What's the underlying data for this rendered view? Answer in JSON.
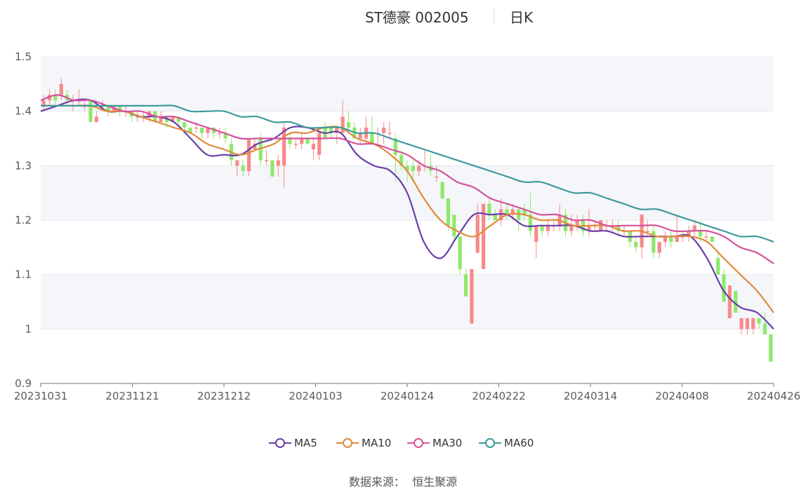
{
  "title": {
    "name": "ST德豪 002005",
    "period": "日K"
  },
  "source": {
    "label": "数据来源：",
    "value": "恒生聚源"
  },
  "legend": [
    {
      "name": "MA5",
      "color": "#6a3fa8"
    },
    {
      "name": "MA10",
      "color": "#e08a3a"
    },
    {
      "name": "MA30",
      "color": "#d4529a"
    },
    {
      "name": "MA60",
      "color": "#3f9a9c"
    }
  ],
  "colors": {
    "up": "#f78a8a",
    "down": "#8ee86a",
    "grid": "#e6e9f0",
    "band": "#f5f6fa",
    "axis": "#5a5a5a"
  },
  "chart_data": {
    "type": "candlestick",
    "title": "ST德豪 002005 日K",
    "ylim": [
      0.9,
      1.5
    ],
    "yticks": [
      "1.5",
      "1.4",
      "1.3",
      "1.2",
      "1.1",
      "1",
      "0.9"
    ],
    "xticks": [
      "20231031",
      "20231121",
      "20231212",
      "20240103",
      "20240124",
      "20240222",
      "20240314",
      "20240408",
      "20240426"
    ],
    "grid": true,
    "legend_position": "bottom",
    "candles": [
      [
        1.41,
        1.42,
        1.43,
        1.4
      ],
      [
        1.42,
        1.43,
        1.44,
        1.41
      ],
      [
        1.43,
        1.42,
        1.44,
        1.41
      ],
      [
        1.43,
        1.45,
        1.46,
        1.42
      ],
      [
        1.43,
        1.42,
        1.44,
        1.41
      ],
      [
        1.42,
        1.42,
        1.43,
        1.4
      ],
      [
        1.42,
        1.42,
        1.44,
        1.41
      ],
      [
        1.41,
        1.41,
        1.42,
        1.4
      ],
      [
        1.42,
        1.38,
        1.42,
        1.38
      ],
      [
        1.38,
        1.39,
        1.4,
        1.38
      ],
      [
        1.41,
        1.41,
        1.42,
        1.4
      ],
      [
        1.41,
        1.4,
        1.41,
        1.39
      ],
      [
        1.4,
        1.41,
        1.41,
        1.4
      ],
      [
        1.41,
        1.4,
        1.41,
        1.39
      ],
      [
        1.4,
        1.4,
        1.41,
        1.39
      ],
      [
        1.4,
        1.39,
        1.4,
        1.38
      ],
      [
        1.39,
        1.39,
        1.4,
        1.38
      ],
      [
        1.39,
        1.39,
        1.4,
        1.38
      ],
      [
        1.39,
        1.4,
        1.4,
        1.38
      ],
      [
        1.4,
        1.38,
        1.4,
        1.38
      ],
      [
        1.38,
        1.39,
        1.4,
        1.38
      ],
      [
        1.39,
        1.38,
        1.39,
        1.37
      ],
      [
        1.38,
        1.39,
        1.39,
        1.38
      ],
      [
        1.39,
        1.38,
        1.39,
        1.37
      ],
      [
        1.38,
        1.37,
        1.38,
        1.36
      ],
      [
        1.37,
        1.36,
        1.37,
        1.36
      ],
      [
        1.37,
        1.37,
        1.38,
        1.36
      ],
      [
        1.37,
        1.36,
        1.37,
        1.35
      ],
      [
        1.36,
        1.37,
        1.37,
        1.35
      ],
      [
        1.37,
        1.36,
        1.37,
        1.35
      ],
      [
        1.36,
        1.36,
        1.37,
        1.35
      ],
      [
        1.36,
        1.35,
        1.37,
        1.34
      ],
      [
        1.34,
        1.31,
        1.35,
        1.3
      ],
      [
        1.3,
        1.31,
        1.31,
        1.28
      ],
      [
        1.3,
        1.29,
        1.31,
        1.28
      ],
      [
        1.29,
        1.35,
        1.35,
        1.28
      ],
      [
        1.33,
        1.34,
        1.35,
        1.33
      ],
      [
        1.35,
        1.31,
        1.36,
        1.3
      ],
      [
        1.31,
        1.31,
        1.33,
        1.3
      ],
      [
        1.31,
        1.28,
        1.31,
        1.28
      ],
      [
        1.3,
        1.31,
        1.32,
        1.28
      ],
      [
        1.3,
        1.37,
        1.38,
        1.26
      ],
      [
        1.35,
        1.34,
        1.36,
        1.33
      ],
      [
        1.34,
        1.34,
        1.35,
        1.33
      ],
      [
        1.34,
        1.35,
        1.36,
        1.33
      ],
      [
        1.35,
        1.34,
        1.35,
        1.34
      ],
      [
        1.33,
        1.34,
        1.35,
        1.31
      ],
      [
        1.32,
        1.36,
        1.37,
        1.31
      ],
      [
        1.37,
        1.35,
        1.38,
        1.35
      ],
      [
        1.37,
        1.36,
        1.37,
        1.35
      ],
      [
        1.36,
        1.37,
        1.37,
        1.34
      ],
      [
        1.36,
        1.39,
        1.42,
        1.36
      ],
      [
        1.38,
        1.37,
        1.4,
        1.36
      ],
      [
        1.37,
        1.35,
        1.38,
        1.35
      ],
      [
        1.35,
        1.36,
        1.37,
        1.34
      ],
      [
        1.35,
        1.37,
        1.39,
        1.34
      ],
      [
        1.36,
        1.34,
        1.39,
        1.34
      ],
      [
        1.36,
        1.36,
        1.37,
        1.34
      ],
      [
        1.36,
        1.37,
        1.38,
        1.34
      ],
      [
        1.36,
        1.36,
        1.38,
        1.35
      ],
      [
        1.35,
        1.32,
        1.36,
        1.27
      ],
      [
        1.32,
        1.3,
        1.33,
        1.29
      ],
      [
        1.3,
        1.29,
        1.31,
        1.27
      ],
      [
        1.3,
        1.29,
        1.31,
        1.27
      ],
      [
        1.29,
        1.3,
        1.31,
        1.28
      ],
      [
        1.3,
        1.3,
        1.33,
        1.29
      ],
      [
        1.3,
        1.29,
        1.32,
        1.28
      ],
      [
        1.28,
        1.28,
        1.3,
        1.27
      ],
      [
        1.27,
        1.24,
        1.27,
        1.24
      ],
      [
        1.24,
        1.19,
        1.24,
        1.18
      ],
      [
        1.21,
        1.17,
        1.21,
        1.16
      ],
      [
        1.17,
        1.11,
        1.17,
        1.1
      ],
      [
        1.1,
        1.06,
        1.11,
        1.06
      ],
      [
        1.01,
        1.11,
        1.11,
        1.01
      ],
      [
        1.14,
        1.21,
        1.23,
        1.14
      ],
      [
        1.11,
        1.23,
        1.23,
        1.11
      ],
      [
        1.23,
        1.21,
        1.24,
        1.2
      ],
      [
        1.21,
        1.2,
        1.22,
        1.2
      ],
      [
        1.2,
        1.22,
        1.24,
        1.19
      ],
      [
        1.22,
        1.21,
        1.23,
        1.2
      ],
      [
        1.21,
        1.22,
        1.23,
        1.2
      ],
      [
        1.22,
        1.2,
        1.22,
        1.18
      ],
      [
        1.22,
        1.21,
        1.23,
        1.2
      ],
      [
        1.21,
        1.18,
        1.25,
        1.17
      ],
      [
        1.16,
        1.19,
        1.19,
        1.13
      ],
      [
        1.19,
        1.18,
        1.19,
        1.17
      ],
      [
        1.18,
        1.19,
        1.2,
        1.17
      ],
      [
        1.19,
        1.19,
        1.2,
        1.18
      ],
      [
        1.19,
        1.21,
        1.23,
        1.18
      ],
      [
        1.21,
        1.18,
        1.22,
        1.17
      ],
      [
        1.18,
        1.19,
        1.21,
        1.17
      ],
      [
        1.19,
        1.2,
        1.21,
        1.18
      ],
      [
        1.2,
        1.18,
        1.21,
        1.17
      ],
      [
        1.18,
        1.19,
        1.22,
        1.17
      ],
      [
        1.19,
        1.19,
        1.2,
        1.18
      ],
      [
        1.18,
        1.2,
        1.2,
        1.18
      ],
      [
        1.19,
        1.19,
        1.2,
        1.18
      ],
      [
        1.19,
        1.19,
        1.2,
        1.18
      ],
      [
        1.19,
        1.18,
        1.2,
        1.17
      ],
      [
        1.18,
        1.18,
        1.19,
        1.17
      ],
      [
        1.18,
        1.16,
        1.18,
        1.15
      ],
      [
        1.16,
        1.15,
        1.17,
        1.14
      ],
      [
        1.15,
        1.21,
        1.21,
        1.13
      ],
      [
        1.18,
        1.18,
        1.2,
        1.17
      ],
      [
        1.18,
        1.14,
        1.19,
        1.13
      ],
      [
        1.14,
        1.16,
        1.16,
        1.13
      ],
      [
        1.16,
        1.17,
        1.18,
        1.15
      ],
      [
        1.17,
        1.16,
        1.18,
        1.15
      ],
      [
        1.16,
        1.17,
        1.21,
        1.16
      ],
      [
        1.17,
        1.17,
        1.18,
        1.16
      ],
      [
        1.17,
        1.18,
        1.19,
        1.16
      ],
      [
        1.18,
        1.19,
        1.2,
        1.17
      ],
      [
        1.18,
        1.17,
        1.2,
        1.16
      ],
      [
        1.17,
        1.17,
        1.18,
        1.16
      ],
      [
        1.17,
        1.16,
        1.17,
        1.16
      ],
      [
        1.13,
        1.1,
        1.14,
        1.1
      ],
      [
        1.1,
        1.05,
        1.11,
        1.05
      ],
      [
        1.02,
        1.08,
        1.08,
        1.02
      ],
      [
        1.07,
        1.03,
        1.07,
        1.03
      ],
      [
        1.0,
        1.02,
        1.02,
        0.99
      ],
      [
        1.0,
        1.02,
        1.02,
        0.99
      ],
      [
        1.0,
        1.02,
        1.02,
        0.99
      ],
      [
        1.02,
        1.01,
        1.02,
        1.0
      ],
      [
        1.01,
        0.99,
        1.03,
        0.99
      ],
      [
        0.99,
        0.94,
        0.99,
        0.94
      ]
    ],
    "series": [
      {
        "name": "MA5",
        "values": [
          1.4,
          1.41,
          1.42,
          1.42,
          1.4,
          1.4,
          1.39,
          1.39,
          1.38,
          1.35,
          1.32,
          1.32,
          1.32,
          1.34,
          1.35,
          1.37,
          1.37,
          1.36,
          1.36,
          1.32,
          1.3,
          1.29,
          1.25,
          1.16,
          1.13,
          1.17,
          1.21,
          1.21,
          1.21,
          1.19,
          1.19,
          1.19,
          1.19,
          1.18,
          1.18,
          1.17,
          1.17,
          1.17,
          1.17,
          1.17,
          1.13,
          1.07,
          1.04,
          1.03,
          1.0
        ]
      },
      {
        "name": "MA10",
        "values": [
          1.41,
          1.41,
          1.41,
          1.41,
          1.4,
          1.4,
          1.39,
          1.38,
          1.37,
          1.36,
          1.34,
          1.33,
          1.32,
          1.33,
          1.34,
          1.36,
          1.36,
          1.37,
          1.37,
          1.35,
          1.34,
          1.32,
          1.29,
          1.24,
          1.2,
          1.18,
          1.17,
          1.19,
          1.21,
          1.21,
          1.2,
          1.2,
          1.19,
          1.19,
          1.19,
          1.18,
          1.18,
          1.17,
          1.17,
          1.17,
          1.16,
          1.13,
          1.1,
          1.07,
          1.03
        ]
      },
      {
        "name": "MA30",
        "values": [
          1.42,
          1.43,
          1.42,
          1.42,
          1.41,
          1.4,
          1.4,
          1.39,
          1.39,
          1.38,
          1.37,
          1.36,
          1.35,
          1.35,
          1.35,
          1.35,
          1.35,
          1.35,
          1.35,
          1.34,
          1.34,
          1.33,
          1.32,
          1.3,
          1.29,
          1.27,
          1.26,
          1.24,
          1.23,
          1.22,
          1.21,
          1.21,
          1.2,
          1.2,
          1.19,
          1.19,
          1.19,
          1.19,
          1.18,
          1.18,
          1.18,
          1.17,
          1.15,
          1.14,
          1.12
        ]
      },
      {
        "name": "MA60",
        "values": [
          1.41,
          1.41,
          1.41,
          1.41,
          1.41,
          1.41,
          1.41,
          1.41,
          1.41,
          1.4,
          1.4,
          1.4,
          1.39,
          1.39,
          1.38,
          1.38,
          1.37,
          1.37,
          1.37,
          1.36,
          1.36,
          1.35,
          1.34,
          1.33,
          1.32,
          1.31,
          1.3,
          1.29,
          1.28,
          1.27,
          1.27,
          1.26,
          1.25,
          1.25,
          1.24,
          1.23,
          1.22,
          1.22,
          1.21,
          1.2,
          1.19,
          1.18,
          1.17,
          1.17,
          1.16
        ]
      }
    ]
  }
}
